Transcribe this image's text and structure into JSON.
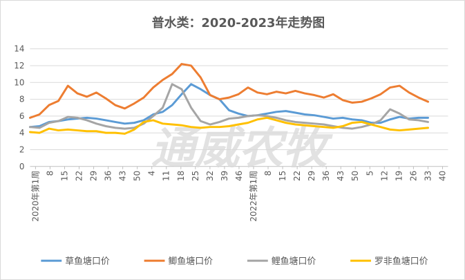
{
  "chart_data": {
    "type": "line",
    "title": "普水类：2020-2023年走势图",
    "watermark": "通威农牧",
    "ylim": [
      0,
      14
    ],
    "yticks": [
      0,
      2,
      4,
      6,
      8,
      10,
      12,
      14
    ],
    "grid": "horizontal",
    "legend_position": "bottom",
    "x_tick_labels": [
      "2020年第1周",
      "8",
      "15",
      "22",
      "29",
      "36",
      "43",
      "50",
      "4",
      "11",
      "18",
      "25",
      "32",
      "39",
      "46",
      "2022年第1周",
      "8",
      "15",
      "22",
      "29",
      "36",
      "43",
      "50",
      "5",
      "12",
      "19",
      "26",
      "33",
      "40"
    ],
    "colors": {
      "草鱼塘口价": "#5b9bd5",
      "鲫鱼塘口价": "#ed7d31",
      "鲤鱼塘口价": "#a5a5a5",
      "罗非鱼塘口价": "#ffc000"
    },
    "series": [
      {
        "name": "草鱼塘口价",
        "color": "#5b9bd5",
        "values": [
          4.7,
          4.8,
          5.3,
          5.4,
          5.6,
          5.7,
          5.8,
          5.7,
          5.5,
          5.3,
          5.1,
          5.2,
          5.5,
          6.2,
          6.5,
          7.3,
          8.6,
          9.8,
          9.2,
          8.5,
          8.0,
          6.7,
          6.3,
          6.0,
          6.1,
          6.3,
          6.5,
          6.6,
          6.4,
          6.2,
          6.1,
          5.9,
          5.7,
          5.8,
          5.6,
          5.5,
          5.2,
          5.2,
          5.6,
          5.9,
          5.7,
          5.8,
          5.8
        ]
      },
      {
        "name": "鲫鱼塘口价",
        "color": "#ed7d31",
        "values": [
          5.8,
          6.2,
          7.3,
          7.8,
          9.6,
          8.7,
          8.3,
          8.8,
          8.1,
          7.3,
          6.9,
          7.5,
          8.2,
          9.4,
          10.3,
          11.0,
          12.2,
          12.0,
          10.6,
          8.5,
          8.0,
          8.2,
          8.6,
          9.4,
          8.8,
          8.6,
          8.9,
          8.7,
          9.0,
          8.7,
          8.5,
          8.2,
          8.6,
          7.9,
          7.6,
          7.7,
          8.1,
          8.6,
          9.4,
          9.6,
          8.8,
          8.2,
          7.7
        ]
      },
      {
        "name": "鲤鱼塘口价",
        "color": "#a5a5a5",
        "values": [
          4.7,
          4.6,
          5.2,
          5.4,
          5.9,
          5.8,
          5.5,
          5.1,
          4.8,
          4.6,
          4.5,
          4.6,
          5.1,
          6.0,
          7.0,
          9.8,
          9.2,
          7.0,
          5.4,
          5.0,
          5.3,
          5.7,
          5.8,
          6.0,
          6.1,
          6.0,
          5.8,
          5.5,
          5.3,
          5.2,
          5.1,
          5.0,
          4.8,
          4.6,
          4.5,
          4.7,
          5.0,
          5.5,
          6.8,
          6.3,
          5.6,
          5.5,
          5.3
        ]
      },
      {
        "name": "罗非鱼塘口价",
        "color": "#ffc000",
        "values": [
          4.1,
          4.0,
          4.5,
          4.3,
          4.4,
          4.3,
          4.2,
          4.2,
          4.0,
          4.0,
          3.9,
          4.4,
          5.3,
          5.5,
          5.1,
          5.0,
          4.9,
          4.7,
          4.6,
          4.7,
          4.7,
          4.8,
          5.0,
          5.2,
          5.6,
          5.8,
          5.5,
          5.2,
          5.0,
          4.9,
          4.8,
          4.7,
          4.6,
          4.8,
          5.2,
          5.3,
          5.0,
          4.7,
          4.4,
          4.3,
          4.4,
          4.5,
          4.6
        ]
      }
    ]
  }
}
